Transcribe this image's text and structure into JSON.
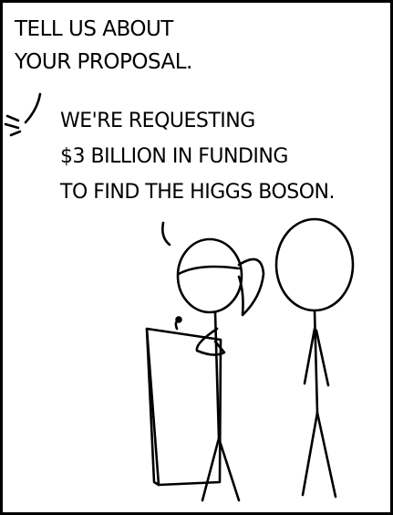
{
  "panel": {
    "line_color": "#000000",
    "background_color": "#ffffff",
    "dialogue": [
      {
        "speaker": "off-panel",
        "text": "TELL US ABOUT\nYOUR PROPOSAL."
      },
      {
        "speaker": "woman-at-podium",
        "text": "WE'RE REQUESTING\n$3 BILLION IN FUNDING\nTO FIND THE HIGGS BOSON."
      }
    ]
  }
}
